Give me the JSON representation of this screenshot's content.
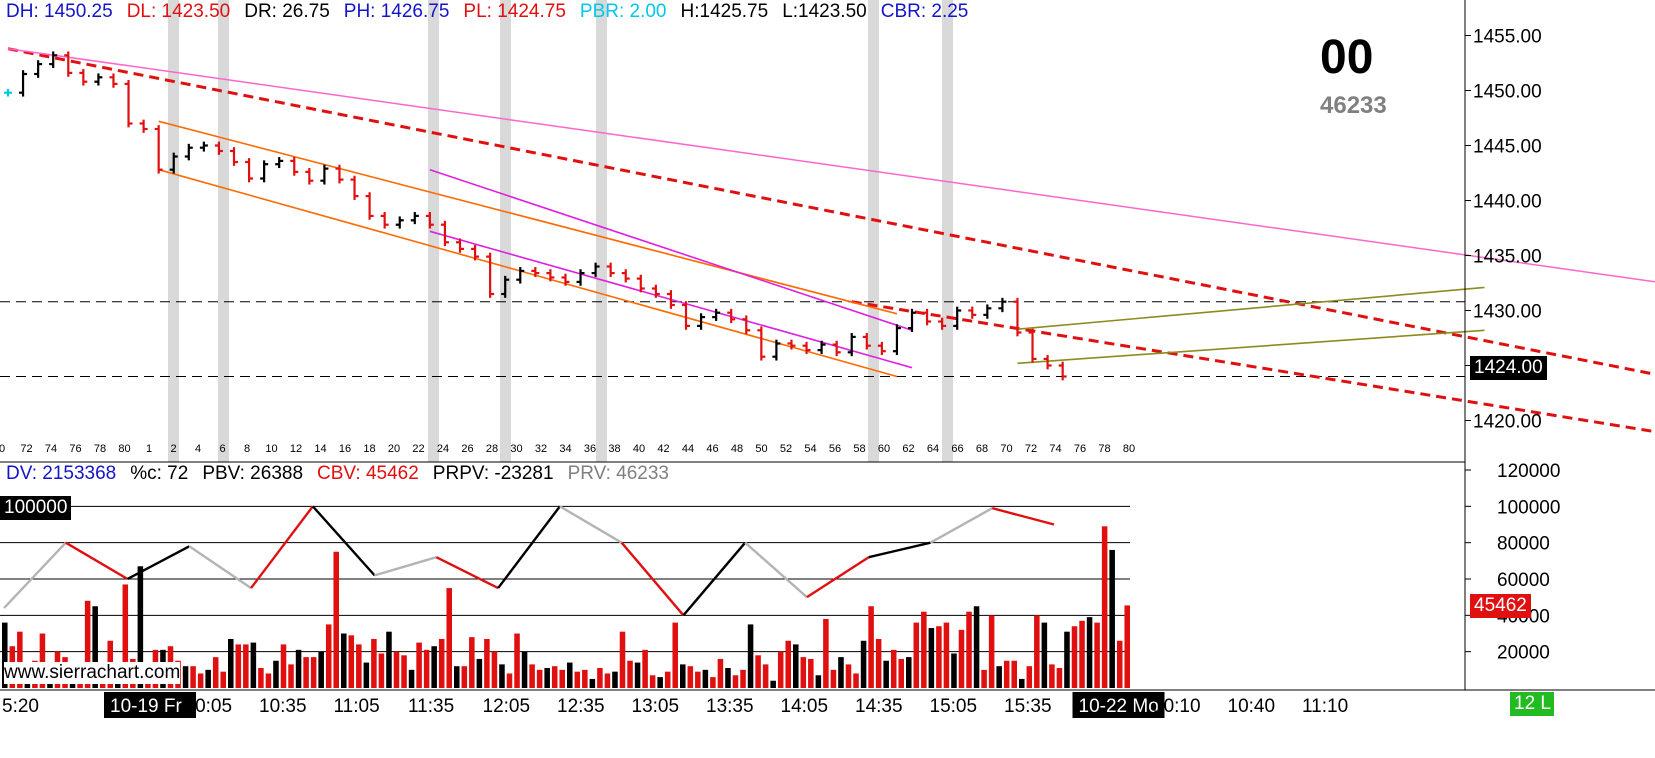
{
  "price_header": [
    {
      "label": "DH: 1450.25",
      "color": "#1414c8"
    },
    {
      "label": "DL: 1423.50",
      "color": "#e01010"
    },
    {
      "label": "DR: 26.75",
      "color": "#000000"
    },
    {
      "label": "PH: 1426.75",
      "color": "#1414c8"
    },
    {
      "label": "PL: 1424.75",
      "color": "#e01010"
    },
    {
      "label": "PBR: 2.00",
      "color": "#00c8e6"
    },
    {
      "label": "H:1425.75",
      "color": "#000000"
    },
    {
      "label": "L:1423.50",
      "color": "#000000"
    },
    {
      "label": "CBR: 2.25",
      "color": "#1414c8"
    }
  ],
  "volume_header": [
    {
      "label": "DV: 2153368",
      "color": "#1414c8"
    },
    {
      "label": "%c: 72",
      "color": "#000000"
    },
    {
      "label": "PBV: 26388",
      "color": "#000000"
    },
    {
      "label": "CBV: 45462",
      "color": "#e01010"
    },
    {
      "label": "PRPV: -23281",
      "color": "#000000"
    },
    {
      "label": "PRV: 46233",
      "color": "#808080"
    }
  ],
  "countdown": "00",
  "countdown_sub": "46233",
  "watermark": "www.sierrachart.com",
  "price_tag": "1424.00",
  "volume_tag": "45462",
  "level_tag": "100000",
  "corner_tag": "12 L",
  "colors": {
    "up": "#e01010",
    "down": "#000000",
    "inside": "#00c8e6",
    "channel": "#ff6a00",
    "trend": "#e01010",
    "magenta": "#e020e0",
    "pink": "#ff66cc",
    "olive": "#8c8c1e",
    "session": "#d9d9d9"
  },
  "chart_data": [
    {
      "type": "ohlc",
      "title": "",
      "yaxis_ticks": [
        "1455.00",
        "1450.00",
        "1445.00",
        "1440.00",
        "1435.00",
        "1430.00",
        "1425.00",
        "1420.00"
      ],
      "ylim": [
        1417.5,
        1457.5
      ],
      "bar_numbers": [
        "0",
        "72",
        "74",
        "76",
        "78",
        "80",
        "1",
        "2",
        "4",
        "6",
        "8",
        "10",
        "12",
        "14",
        "16",
        "18",
        "20",
        "22",
        "24",
        "26",
        "28",
        "30",
        "32",
        "34",
        "36",
        "38",
        "40",
        "42",
        "44",
        "46",
        "48",
        "50",
        "52",
        "54",
        "56",
        "58",
        "60",
        "62",
        "64",
        "66",
        "68",
        "70",
        "72",
        "74",
        "76",
        "78",
        "80"
      ],
      "closes": [
        1449.8,
        1451.5,
        1452.4,
        1453.2,
        1451.6,
        1450.8,
        1451.2,
        1450.6,
        1447.0,
        1446.5,
        1442.8,
        1444.0,
        1444.8,
        1445.0,
        1444.5,
        1443.5,
        1442.0,
        1443.3,
        1443.6,
        1442.6,
        1441.8,
        1442.9,
        1441.9,
        1440.4,
        1438.6,
        1437.8,
        1438.2,
        1438.6,
        1437.8,
        1436.2,
        1435.6,
        1434.9,
        1431.5,
        1432.8,
        1433.6,
        1433.4,
        1433.0,
        1432.6,
        1433.4,
        1434.0,
        1433.4,
        1432.9,
        1432.0,
        1431.5,
        1430.5,
        1428.6,
        1429.4,
        1429.8,
        1429.2,
        1428.2,
        1425.8,
        1427.0,
        1426.8,
        1426.4,
        1426.9,
        1426.2,
        1427.6,
        1426.8,
        1426.3,
        1428.4,
        1429.8,
        1429.0,
        1428.6,
        1430.0,
        1429.6,
        1430.2,
        1430.8,
        1428.0,
        1425.6,
        1425.0,
        1424.0
      ],
      "horizontal_levels": [
        1430.8,
        1424.0
      ],
      "trendlines": [
        {
          "from": [
            0,
            1453.8
          ],
          "to": [
            130,
            1418.6
          ],
          "style": "dash"
        },
        {
          "from": [
            0,
            1453.8
          ],
          "to": [
            130,
            1428.6
          ],
          "style": "solid"
        }
      ]
    },
    {
      "type": "bar",
      "title": "",
      "yaxis_ticks": [
        "120000",
        "100000",
        "80000",
        "60000",
        "40000",
        "20000"
      ],
      "ylim": [
        0,
        120000
      ],
      "values": [
        36000,
        23000,
        31000,
        12000,
        15000,
        30000,
        12000,
        20000,
        17000,
        14000,
        12000,
        48000,
        45000,
        10000,
        26000,
        11000,
        57000,
        16000,
        67000,
        11000,
        21000,
        21000,
        23000,
        15000,
        12000,
        12000,
        8000,
        10000,
        17000,
        9000,
        27000,
        24000,
        24000,
        25000,
        11000,
        8000,
        15000,
        24000,
        13000,
        21000,
        17000,
        17000,
        20000,
        35000,
        75000,
        30000,
        29000,
        24000,
        14000,
        27000,
        19000,
        31000,
        20000,
        18000,
        10000,
        25000,
        21000,
        23000,
        27000,
        55000,
        12000,
        12000,
        28000,
        16000,
        27000,
        20000,
        13000,
        8000,
        30000,
        20000,
        13000,
        10000,
        11000,
        12000,
        10000,
        14000,
        9000,
        10000,
        5000,
        11000,
        8000,
        9000,
        31000,
        15000,
        14000,
        21000,
        7000,
        6000,
        9000,
        36000,
        13000,
        12000,
        9000,
        10000,
        6000,
        16000,
        11000,
        7000,
        10000,
        35000,
        18000,
        13000,
        4000,
        20000,
        26000,
        24000,
        17000,
        16000,
        7000,
        38000,
        10000,
        17000,
        13000,
        8000,
        26000,
        45000,
        27000,
        15000,
        21000,
        16000,
        17000,
        36000,
        42000,
        33000,
        34000,
        36000,
        19000,
        32000,
        42000,
        45000,
        10000,
        40000,
        12000,
        15000,
        15000,
        5000,
        12000,
        40000,
        36000,
        13000,
        11000,
        31000,
        34000,
        37000,
        39000,
        36000,
        89000,
        76000,
        26000,
        45462
      ],
      "line_values": [
        44000,
        80000,
        60000,
        78000,
        55000,
        100000,
        62000,
        72000,
        55000,
        100000,
        80000,
        40000,
        80000,
        50000,
        72000,
        80000,
        99000,
        90000
      ]
    }
  ],
  "time_axis": [
    {
      "label": "5:20",
      "highlight": false
    },
    {
      "label": "10-19 Fr",
      "highlight": true
    },
    {
      "label": "10:05",
      "highlight": false
    },
    {
      "label": "10:35",
      "highlight": false
    },
    {
      "label": "11:05",
      "highlight": false
    },
    {
      "label": "11:35",
      "highlight": false
    },
    {
      "label": "12:05",
      "highlight": false
    },
    {
      "label": "12:35",
      "highlight": false
    },
    {
      "label": "13:05",
      "highlight": false
    },
    {
      "label": "13:35",
      "highlight": false
    },
    {
      "label": "14:05",
      "highlight": false
    },
    {
      "label": "14:35",
      "highlight": false
    },
    {
      "label": "15:05",
      "highlight": false
    },
    {
      "label": "15:35",
      "highlight": false
    },
    {
      "label": "10-22 Mo",
      "highlight": true
    },
    {
      "label": "10:10",
      "highlight": false
    },
    {
      "label": "10:40",
      "highlight": false
    },
    {
      "label": "11:10",
      "highlight": false
    }
  ]
}
